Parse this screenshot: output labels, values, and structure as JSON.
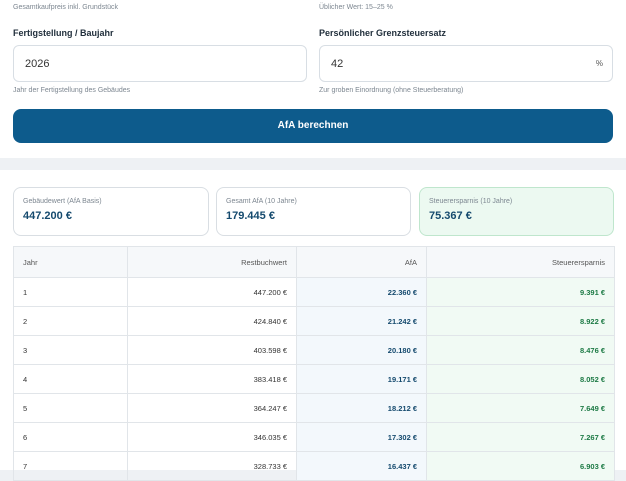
{
  "form": {
    "hints_top": [
      "Gesamtkaufpreis inkl. Grundstück",
      "Üblicher Wert: 15–25 %"
    ],
    "fields": [
      {
        "label": "Fertigstellung / Baujahr",
        "value": "2026",
        "hint": "Jahr der Fertigstellung des Gebäudes"
      },
      {
        "label": "Persönlicher Grenzsteuersatz",
        "value": "42",
        "suffix": "%",
        "hint": "Zur groben Einordnung (ohne Steuerberatung)"
      }
    ],
    "button": "AfA berechnen"
  },
  "summary": [
    {
      "label": "Gebäudewert (AfA Basis)",
      "value": "447.200 €"
    },
    {
      "label": "Gesamt AfA (10 Jahre)",
      "value": "179.445 €"
    },
    {
      "label": "Steuerersparnis (10 Jahre)",
      "value": "75.367 €"
    }
  ],
  "table": {
    "header": [
      "Jahr",
      "Restbuchwert",
      "AfA",
      "Steuerersparnis"
    ],
    "rows": [
      [
        "1",
        "447.200 €",
        "22.360 €",
        "9.391 €"
      ],
      [
        "2",
        "424.840 €",
        "21.242 €",
        "8.922 €"
      ],
      [
        "3",
        "403.598 €",
        "20.180 €",
        "8.476 €"
      ],
      [
        "4",
        "383.418 €",
        "19.171 €",
        "8.052 €"
      ],
      [
        "5",
        "364.247 €",
        "18.212 €",
        "7.649 €"
      ],
      [
        "6",
        "346.035 €",
        "17.302 €",
        "7.267 €"
      ],
      [
        "7",
        "328.733 €",
        "16.437 €",
        "6.903 €"
      ]
    ]
  }
}
